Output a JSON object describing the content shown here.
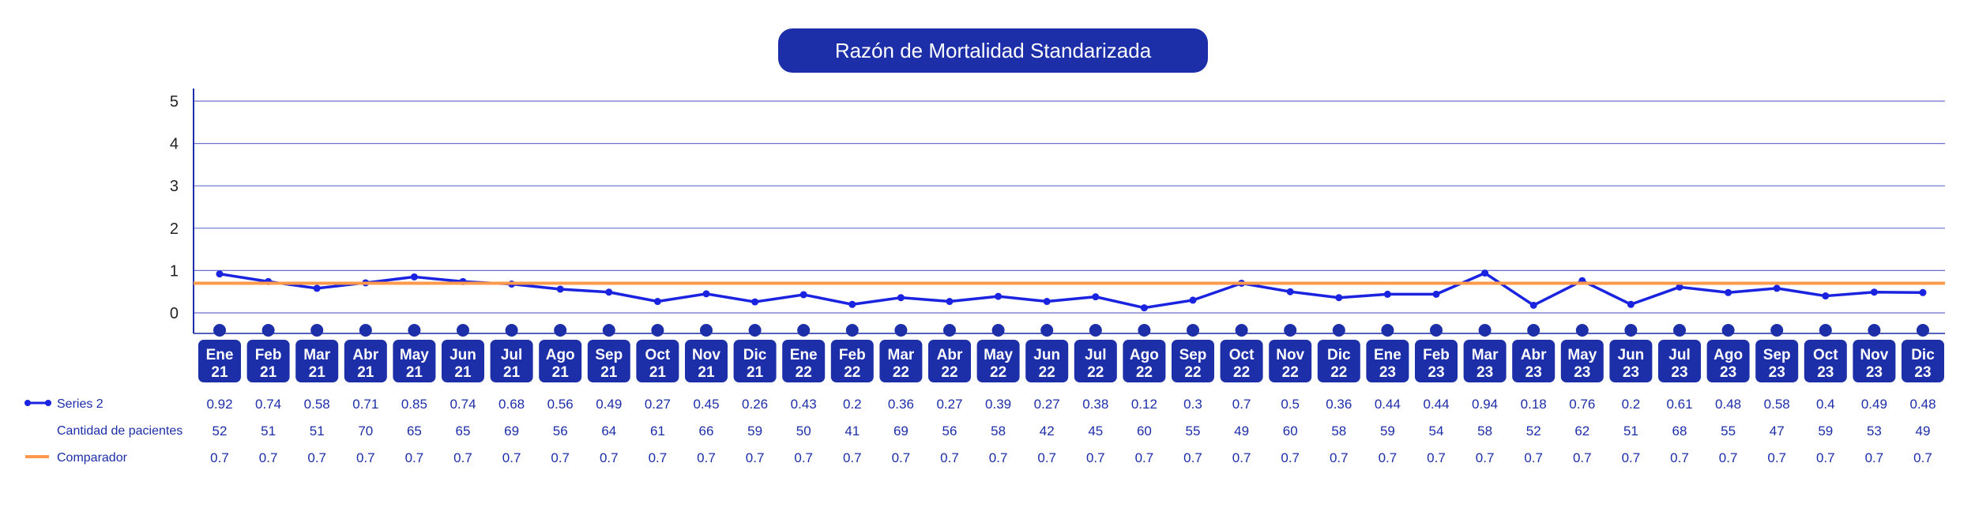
{
  "chart_data": {
    "type": "line",
    "title": "Razón de Mortalidad Standarizada",
    "ylim": [
      0,
      5
    ],
    "yticks": [
      "0",
      "1",
      "2",
      "3",
      "4",
      "5"
    ],
    "grid": true,
    "categories": [
      [
        "Ene",
        "21"
      ],
      [
        "Feb",
        "21"
      ],
      [
        "Mar",
        "21"
      ],
      [
        "Abr",
        "21"
      ],
      [
        "May",
        "21"
      ],
      [
        "Jun",
        "21"
      ],
      [
        "Jul",
        "21"
      ],
      [
        "Ago",
        "21"
      ],
      [
        "Sep",
        "21"
      ],
      [
        "Oct",
        "21"
      ],
      [
        "Nov",
        "21"
      ],
      [
        "Dic",
        "21"
      ],
      [
        "Ene",
        "22"
      ],
      [
        "Feb",
        "22"
      ],
      [
        "Mar",
        "22"
      ],
      [
        "Abr",
        "22"
      ],
      [
        "May",
        "22"
      ],
      [
        "Jun",
        "22"
      ],
      [
        "Jul",
        "22"
      ],
      [
        "Ago",
        "22"
      ],
      [
        "Sep",
        "22"
      ],
      [
        "Oct",
        "22"
      ],
      [
        "Nov",
        "22"
      ],
      [
        "Dic",
        "22"
      ],
      [
        "Ene",
        "23"
      ],
      [
        "Feb",
        "23"
      ],
      [
        "Mar",
        "23"
      ],
      [
        "Abr",
        "23"
      ],
      [
        "May",
        "23"
      ],
      [
        "Jun",
        "23"
      ],
      [
        "Jul",
        "23"
      ],
      [
        "Ago",
        "23"
      ],
      [
        "Sep",
        "23"
      ],
      [
        "Oct",
        "23"
      ],
      [
        "Nov",
        "23"
      ],
      [
        "Dic",
        "23"
      ]
    ],
    "series": [
      {
        "name": "Series 2",
        "kind": "line",
        "color": "#1a23e0",
        "values": [
          0.92,
          0.74,
          0.58,
          0.71,
          0.85,
          0.74,
          0.68,
          0.56,
          0.49,
          0.27,
          0.45,
          0.26,
          0.43,
          0.2,
          0.36,
          0.27,
          0.39,
          0.27,
          0.38,
          0.12,
          0.3,
          0.7,
          0.5,
          0.36,
          0.44,
          0.44,
          0.94,
          0.18,
          0.76,
          0.2,
          0.61,
          0.48,
          0.58,
          0.4,
          0.49,
          0.48
        ]
      },
      {
        "name": "Cantidad de pacientes",
        "kind": "table-only",
        "values": [
          52,
          51,
          51,
          70,
          65,
          65,
          69,
          56,
          64,
          61,
          66,
          59,
          50,
          41,
          69,
          56,
          58,
          42,
          45,
          60,
          55,
          49,
          60,
          58,
          59,
          54,
          58,
          52,
          62,
          51,
          68,
          55,
          47,
          59,
          53,
          49
        ]
      },
      {
        "name": "Comparador",
        "kind": "line",
        "color": "#ff9a4d",
        "values": [
          0.7,
          0.7,
          0.7,
          0.7,
          0.7,
          0.7,
          0.7,
          0.7,
          0.7,
          0.7,
          0.7,
          0.7,
          0.7,
          0.7,
          0.7,
          0.7,
          0.7,
          0.7,
          0.7,
          0.7,
          0.7,
          0.7,
          0.7,
          0.7,
          0.7,
          0.7,
          0.7,
          0.7,
          0.7,
          0.7,
          0.7,
          0.7,
          0.7,
          0.7,
          0.7,
          0.7
        ]
      }
    ]
  },
  "colors": {
    "accent": "#1c2ea8",
    "grid": "#6a6fd0",
    "series_line": "#1a23e0",
    "comparator": "#ff9a4d"
  }
}
